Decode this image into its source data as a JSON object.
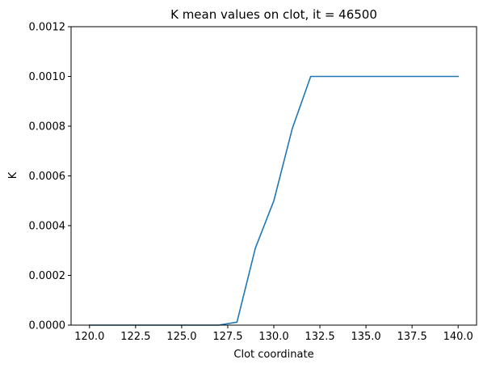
{
  "chart_data": {
    "type": "line",
    "title": "K mean values on clot, it = 46500",
    "xlabel": "Clot coordinate",
    "ylabel": "K",
    "xlim": [
      119.0,
      141.0
    ],
    "ylim": [
      0.0,
      0.0012
    ],
    "xticks": [
      120.0,
      122.5,
      125.0,
      127.5,
      130.0,
      132.5,
      135.0,
      137.5,
      140.0
    ],
    "xtick_labels": [
      "120.0",
      "122.5",
      "125.0",
      "127.5",
      "130.0",
      "132.5",
      "135.0",
      "137.5",
      "140.0"
    ],
    "yticks": [
      0.0,
      0.0002,
      0.0004,
      0.0006,
      0.0008,
      0.001,
      0.0012
    ],
    "ytick_labels": [
      "0.0000",
      "0.0002",
      "0.0004",
      "0.0006",
      "0.0008",
      "0.0010",
      "0.0012"
    ],
    "grid": false,
    "series": [
      {
        "name": "K",
        "color": "#1f77b4",
        "x": [
          120,
          121,
          122,
          123,
          124,
          125,
          126,
          127,
          128,
          129,
          130,
          131,
          132,
          133,
          134,
          135,
          136,
          137,
          138,
          139,
          140
        ],
        "y": [
          0.0,
          0.0,
          0.0,
          0.0,
          0.0,
          0.0,
          0.0,
          0.0,
          1.2e-05,
          0.00031,
          0.0005,
          0.00079,
          0.001,
          0.001,
          0.001,
          0.001,
          0.001,
          0.001,
          0.001,
          0.001,
          0.001
        ]
      }
    ]
  }
}
